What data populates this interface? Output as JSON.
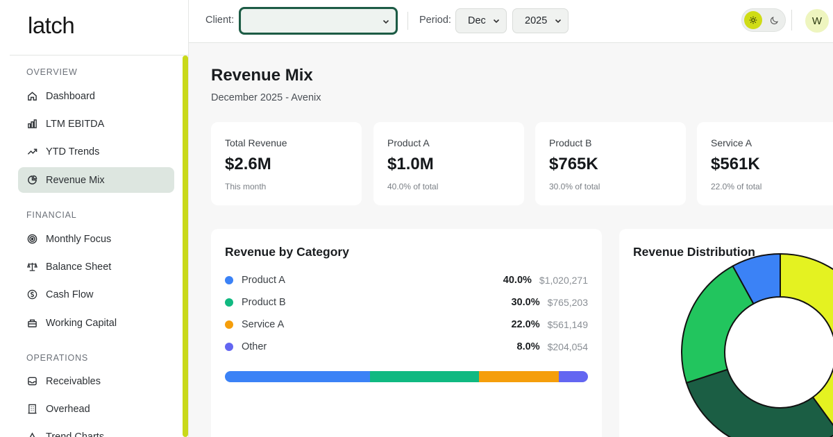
{
  "app": {
    "logo": "latch"
  },
  "sidebar": {
    "sections": [
      {
        "label": "OVERVIEW"
      },
      {
        "label": "FINANCIAL"
      },
      {
        "label": "OPERATIONS"
      }
    ],
    "items": [
      {
        "label": "Dashboard",
        "icon": "home-icon"
      },
      {
        "label": "LTM EBITDA",
        "icon": "bar-chart-icon"
      },
      {
        "label": "YTD Trends",
        "icon": "trend-up-icon"
      },
      {
        "label": "Revenue Mix",
        "icon": "pie-chart-icon",
        "active": true
      },
      {
        "label": "Monthly Focus",
        "icon": "target-icon"
      },
      {
        "label": "Balance Sheet",
        "icon": "scale-icon"
      },
      {
        "label": "Cash Flow",
        "icon": "dollar-circle-icon"
      },
      {
        "label": "Working Capital",
        "icon": "briefcase-icon"
      },
      {
        "label": "Receivables",
        "icon": "inbox-icon"
      },
      {
        "label": "Overhead",
        "icon": "building-icon"
      },
      {
        "label": "Trend Charts",
        "icon": "chart-icon"
      }
    ]
  },
  "topbar": {
    "client_label": "Client:",
    "client_value": "",
    "period_label": "Period:",
    "month_value": "Dec",
    "year_value": "2025",
    "avatar_initial": "W"
  },
  "page": {
    "title": "Revenue Mix",
    "subtitle": "December 2025 - Avenix"
  },
  "kpis": [
    {
      "label": "Total Revenue",
      "value": "$2.6M",
      "note": "This month"
    },
    {
      "label": "Product A",
      "value": "$1.0M",
      "note": "40.0% of total"
    },
    {
      "label": "Product B",
      "value": "$765K",
      "note": "30.0% of total"
    },
    {
      "label": "Service A",
      "value": "$561K",
      "note": "22.0% of total"
    }
  ],
  "category_card": {
    "title": "Revenue by Category",
    "rows": [
      {
        "name": "Product A",
        "pct": "40.0%",
        "amount": "$1,020,271",
        "color": "#3b82f6"
      },
      {
        "name": "Product B",
        "pct": "30.0%",
        "amount": "$765,203",
        "color": "#10b981"
      },
      {
        "name": "Service A",
        "pct": "22.0%",
        "amount": "$561,149",
        "color": "#f59e0b"
      },
      {
        "name": "Other",
        "pct": "8.0%",
        "amount": "$204,054",
        "color": "#6366f1"
      }
    ]
  },
  "distribution_card": {
    "title": "Revenue Distribution"
  },
  "chart_data": {
    "type": "pie",
    "donut": true,
    "categories": [
      "Product A",
      "Product B",
      "Service A",
      "Other"
    ],
    "values": [
      40.0,
      30.0,
      22.0,
      8.0
    ],
    "colors": [
      "#e4f221",
      "#1b5e44",
      "#22c55e",
      "#3b82f6"
    ]
  },
  "colors": {
    "accent": "#cfdc16",
    "brand_dark": "#1c5b45",
    "active_nav": "#dde6e0"
  }
}
